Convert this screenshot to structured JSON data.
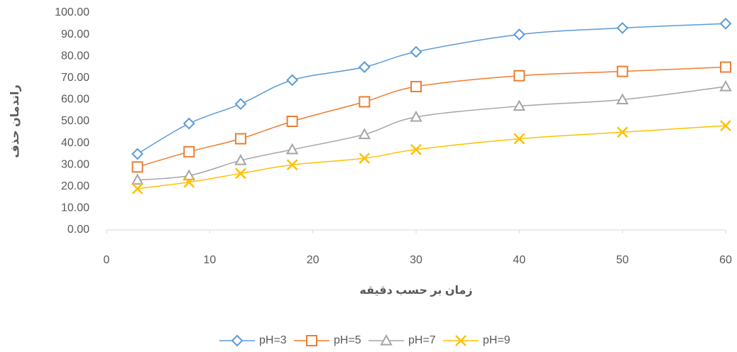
{
  "chart_data": {
    "type": "scatter-smooth",
    "x_label": "زمان بر حسب دقیقه",
    "y_label": "راندمان حذف",
    "x": [
      3,
      8,
      13,
      18,
      25,
      30,
      40,
      50,
      60
    ],
    "series": [
      {
        "name": "pH=3",
        "color": "#5b9bd5",
        "marker": "diamond",
        "values": [
          35,
          49,
          58,
          69,
          75,
          82,
          90,
          93,
          95
        ]
      },
      {
        "name": "pH=5",
        "color": "#ed7d31",
        "marker": "square",
        "values": [
          29,
          36,
          42,
          50,
          59,
          66,
          71,
          73,
          75
        ]
      },
      {
        "name": "pH=7",
        "color": "#a5a5a5",
        "marker": "triangle",
        "values": [
          23,
          25,
          32,
          37,
          44,
          52,
          57,
          60,
          66
        ]
      },
      {
        "name": "pH=9",
        "color": "#ffc000",
        "marker": "x",
        "values": [
          19,
          22,
          26,
          30,
          33,
          37,
          42,
          45,
          48
        ]
      }
    ],
    "xlim": [
      0,
      60
    ],
    "xticks": [
      0,
      10,
      20,
      30,
      40,
      50,
      60
    ],
    "ylim": [
      0,
      100
    ],
    "yticks": [
      {
        "value": 0,
        "label": "0.00"
      },
      {
        "value": 10,
        "label": "10.00"
      },
      {
        "value": 20,
        "label": "20.00"
      },
      {
        "value": 30,
        "label": "30.00"
      },
      {
        "value": 40,
        "label": "40.00"
      },
      {
        "value": 50,
        "label": "50.00"
      },
      {
        "value": 60,
        "label": "60.00"
      },
      {
        "value": 70,
        "label": "70.00"
      },
      {
        "value": 80,
        "label": "80.00"
      },
      {
        "value": 90,
        "label": "90.00"
      },
      {
        "value": 100,
        "label": "100.00"
      }
    ],
    "grid": false,
    "legend": "bottom"
  }
}
